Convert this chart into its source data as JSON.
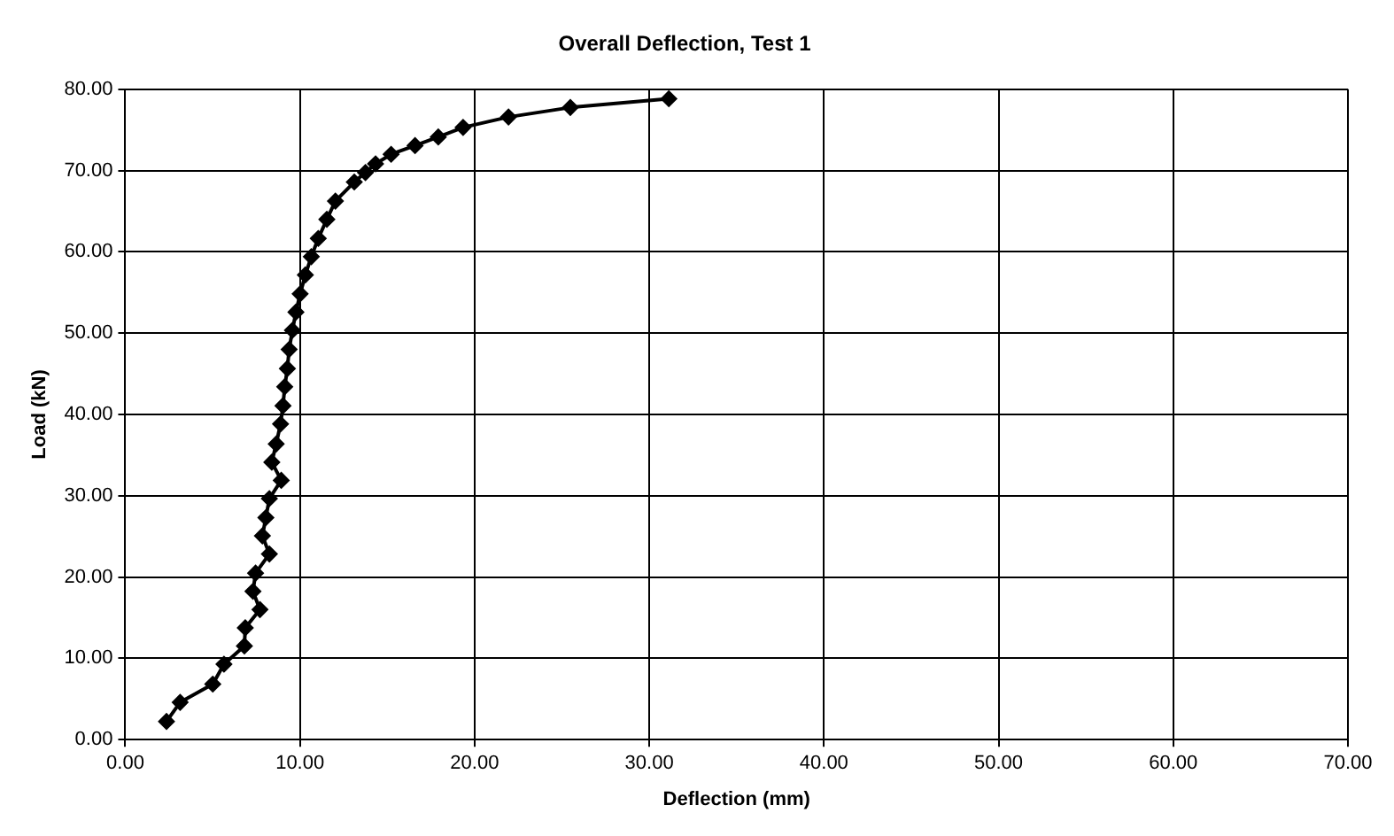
{
  "chart_data": {
    "type": "line",
    "title": "Overall Deflection, Test 1",
    "xlabel": "Deflection (mm)",
    "ylabel": "Load (kN)",
    "x": [
      2.36,
      3.14,
      5.01,
      5.65,
      6.82,
      6.87,
      7.71,
      7.31,
      7.46,
      8.25,
      7.85,
      8.05,
      8.25,
      8.93,
      8.39,
      8.64,
      8.89,
      9.03,
      9.13,
      9.28,
      9.38,
      9.57,
      9.77,
      10.01,
      10.31,
      10.65,
      11.05,
      11.54,
      12.03,
      13.11,
      13.75,
      14.33,
      15.22,
      16.59,
      17.92,
      19.34,
      21.94,
      25.48,
      31.12
    ],
    "series": [
      {
        "color": "#000000",
        "values": [
          2.24,
          4.59,
          6.83,
          9.28,
          11.52,
          13.76,
          16.0,
          18.24,
          20.48,
          22.83,
          25.07,
          27.31,
          29.65,
          31.89,
          34.13,
          36.37,
          38.83,
          41.07,
          43.41,
          45.65,
          48.0,
          50.35,
          52.59,
          54.83,
          57.17,
          59.41,
          61.65,
          64.0,
          66.24,
          68.59,
          69.76,
          70.83,
          72.0,
          73.07,
          74.13,
          75.31,
          76.59,
          77.76,
          78.83
        ]
      }
    ],
    "xlim": [
      0,
      70
    ],
    "xticks": [
      {
        "value": 0,
        "label": "0.00"
      },
      {
        "value": 10,
        "label": "10.00"
      },
      {
        "value": 20,
        "label": "20.00"
      },
      {
        "value": 30,
        "label": "30.00"
      },
      {
        "value": 40,
        "label": "40.00"
      },
      {
        "value": 50,
        "label": "50.00"
      },
      {
        "value": 60,
        "label": "60.00"
      },
      {
        "value": 70,
        "label": "70.00"
      }
    ],
    "ylim": [
      0,
      80
    ],
    "yticks": [
      {
        "value": 0,
        "label": "0.00"
      },
      {
        "value": 10,
        "label": "10.00"
      },
      {
        "value": 20,
        "label": "20.00"
      },
      {
        "value": 30,
        "label": "30.00"
      },
      {
        "value": 40,
        "label": "40.00"
      },
      {
        "value": 50,
        "label": "50.00"
      },
      {
        "value": 60,
        "label": "60.00"
      },
      {
        "value": 70,
        "label": "70.00"
      },
      {
        "value": 80,
        "label": "80.00"
      }
    ],
    "grid": true,
    "marker": "diamond",
    "line_style": "solid"
  }
}
